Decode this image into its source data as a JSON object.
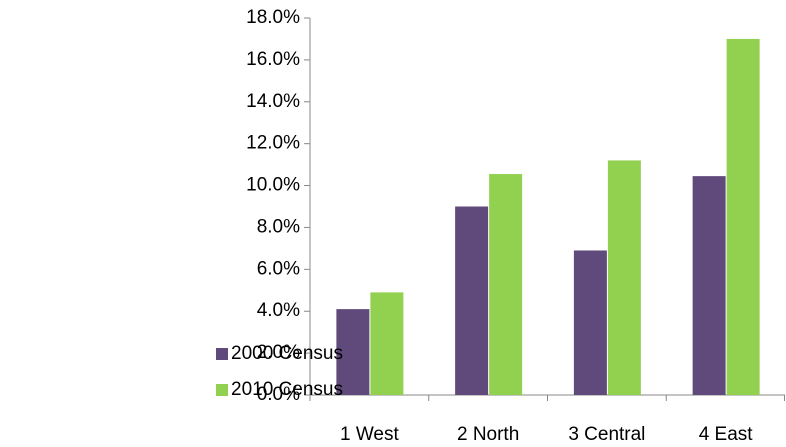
{
  "chart_data": {
    "type": "bar",
    "categories": [
      "1 West",
      "2 North",
      "3 Central",
      "4 East"
    ],
    "series": [
      {
        "name": "2000 Census",
        "color": "#604a7b",
        "values": [
          4.1,
          9.0,
          6.9,
          10.45
        ]
      },
      {
        "name": "2010 Census",
        "color": "#92d050",
        "values": [
          4.9,
          10.55,
          11.2,
          17.0
        ]
      }
    ],
    "ylim": [
      0,
      18
    ],
    "yticks": [
      {
        "value": 0,
        "label": "0.0%"
      },
      {
        "value": 2,
        "label": "2.0%"
      },
      {
        "value": 4,
        "label": "4.0%"
      },
      {
        "value": 6,
        "label": "6.0%"
      },
      {
        "value": 8,
        "label": "8.0%"
      },
      {
        "value": 10,
        "label": "10.0%"
      },
      {
        "value": 12,
        "label": "12.0%"
      },
      {
        "value": 14,
        "label": "14.0%"
      },
      {
        "value": 16,
        "label": "16.0%"
      },
      {
        "value": 18,
        "label": "18.0%"
      }
    ],
    "legend": "left"
  }
}
